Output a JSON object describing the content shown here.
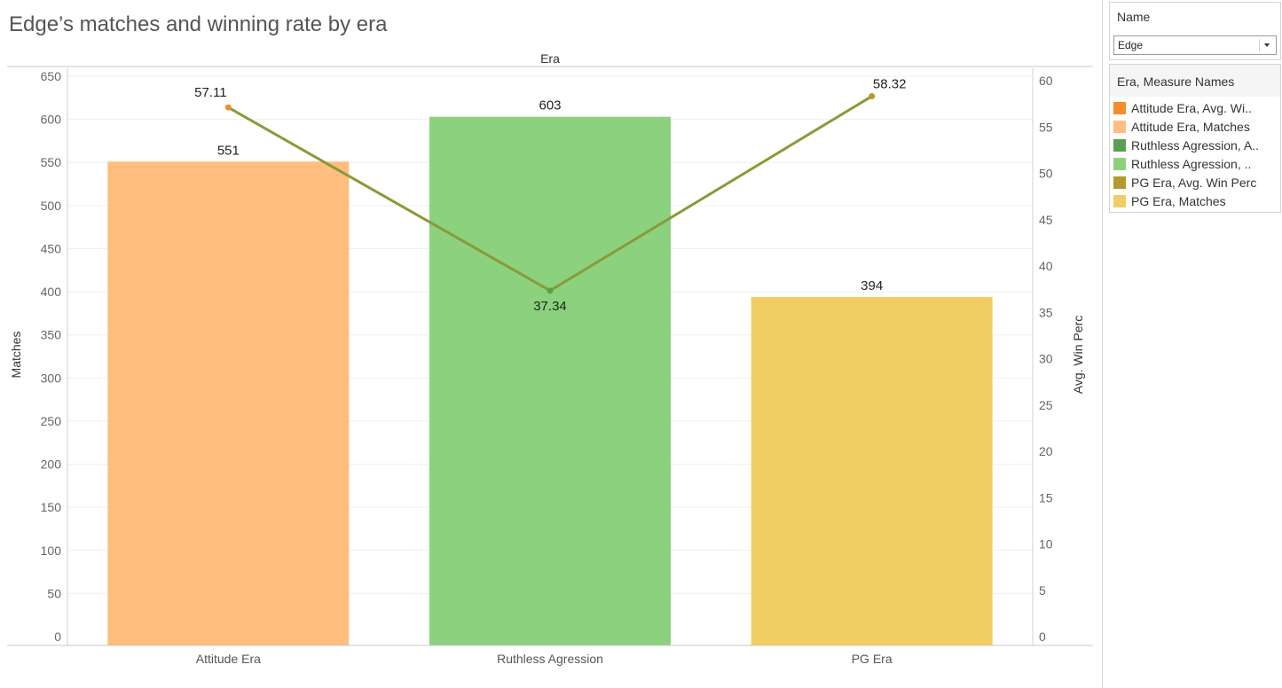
{
  "title": "Edge’s matches and winning rate by era",
  "filter": {
    "title": "Name",
    "value": "Edge"
  },
  "legend": {
    "title": "Era, Measure Names",
    "items": [
      {
        "label": "Attitude Era, Avg. Wi..",
        "color": "#f28e2b"
      },
      {
        "label": "Attitude Era, Matches",
        "color": "#ffbe7d"
      },
      {
        "label": "Ruthless Agression, A..",
        "color": "#59a14f"
      },
      {
        "label": "Ruthless Agression, ..",
        "color": "#8cd17d"
      },
      {
        "label": "PG Era, Avg. Win Perc",
        "color": "#b6992d"
      },
      {
        "label": "PG Era, Matches",
        "color": "#f1ce63"
      }
    ]
  },
  "chart_data": {
    "type": "bar",
    "header": "Era",
    "categories": [
      "Attitude Era",
      "Ruthless Agression",
      "PG Era"
    ],
    "bar_colors": [
      "#ffbe7d",
      "#8cd17d",
      "#f1ce63"
    ],
    "line_color": "#8a9a3a",
    "point_colors": [
      "#f28e2b",
      "#59a14f",
      "#b6992d"
    ],
    "ylabel_left": "Matches",
    "ylabel_right": "Avg. Win Perc",
    "ylim_left": [
      0,
      650
    ],
    "ylim_right": [
      0,
      60
    ],
    "yticks_left": [
      0,
      50,
      100,
      150,
      200,
      250,
      300,
      350,
      400,
      450,
      500,
      550,
      600,
      650
    ],
    "yticks_right": [
      0,
      5,
      10,
      15,
      20,
      25,
      30,
      35,
      40,
      45,
      50,
      55,
      60
    ],
    "series": [
      {
        "name": "Matches",
        "axis": "left",
        "values": [
          551,
          603,
          394
        ]
      },
      {
        "name": "Avg. Win Perc",
        "axis": "right",
        "values": [
          57.11,
          37.34,
          58.32
        ]
      }
    ]
  }
}
